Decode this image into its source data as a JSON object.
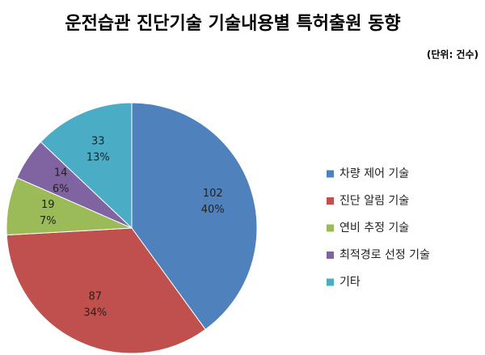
{
  "chart_data": {
    "type": "pie",
    "title": "운전습관 진단기술 기술내용별 특허출원 동향",
    "subtitle": "(단위: 건수)",
    "categories": [
      "차량 제어 기술",
      "진단 알림 기술",
      "연비 추정 기술",
      "최적경로 선정 기술",
      "기타"
    ],
    "values": [
      102,
      87,
      19,
      14,
      33
    ],
    "percent_labels": [
      "40%",
      "34%",
      "7%",
      "6%",
      "13%"
    ],
    "colors": [
      "#4f81bd",
      "#c0504d",
      "#9bbb59",
      "#8064a2",
      "#4bacc6"
    ],
    "legend": "right"
  }
}
